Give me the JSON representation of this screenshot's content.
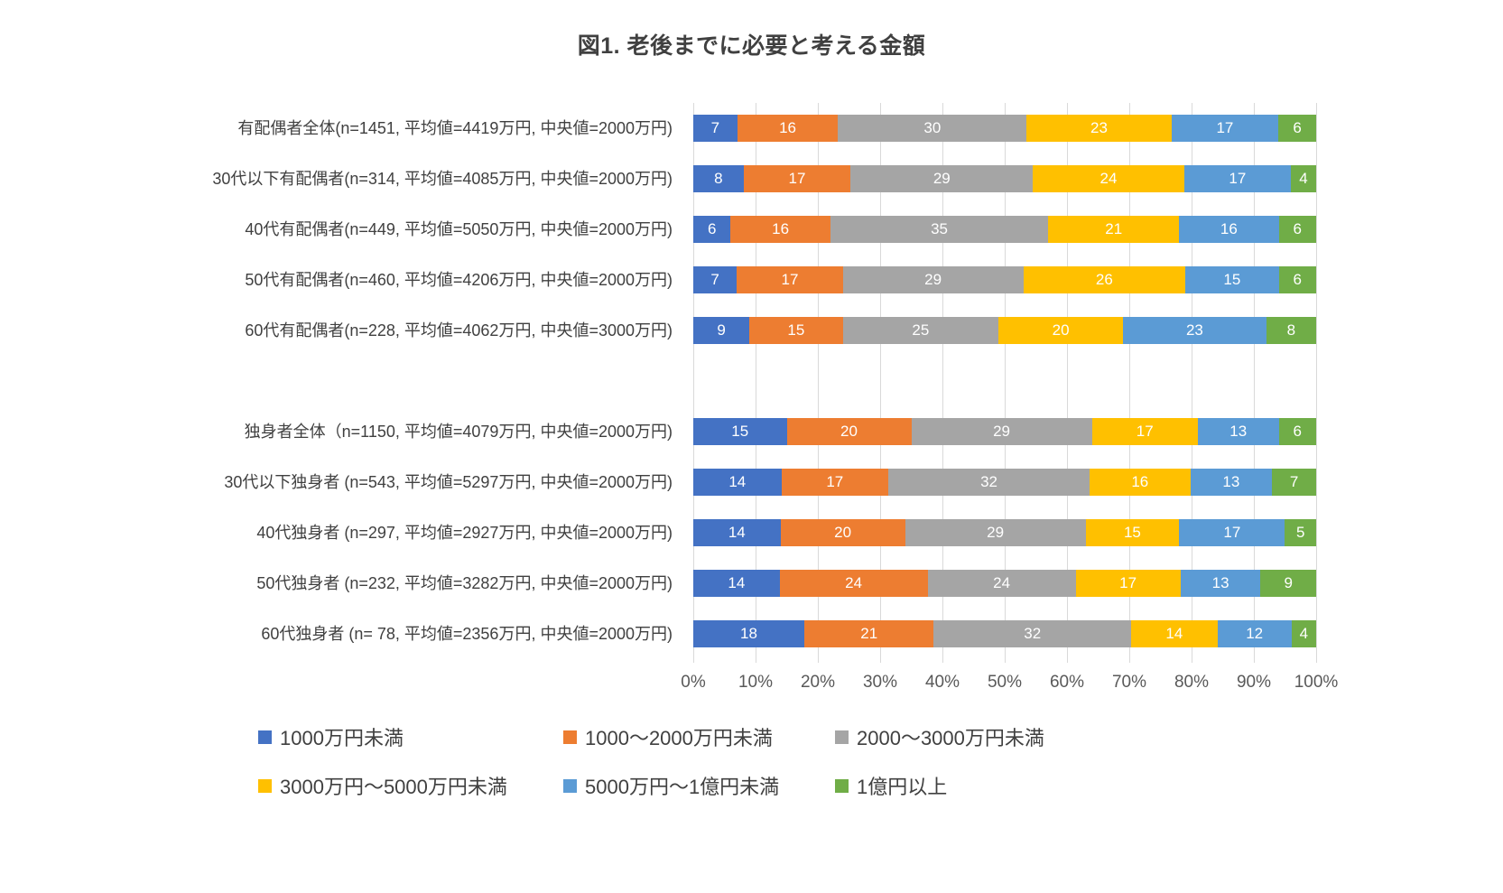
{
  "chart_data": {
    "type": "bar",
    "variant": "stacked-percent",
    "orientation": "horizontal",
    "title": "図1. 老後までに必要と考える金額",
    "xlim": [
      0,
      100
    ],
    "x_ticks": [
      "0%",
      "10%",
      "20%",
      "30%",
      "40%",
      "50%",
      "60%",
      "70%",
      "80%",
      "90%",
      "100%"
    ],
    "grid": true,
    "grid_color": "#d9d9d9",
    "value_label_color": "#ffffff",
    "legend_position": "bottom",
    "series": [
      {
        "name": "1000万円未満",
        "color": "#4472C4"
      },
      {
        "name": "1000～2000万円未満",
        "color": "#ED7D31"
      },
      {
        "name": "2000～3000万円未満",
        "color": "#A5A5A5"
      },
      {
        "name": "3000万円～5000万円未満",
        "color": "#FFC000"
      },
      {
        "name": "5000万円～1億円未満",
        "color": "#5B9BD5"
      },
      {
        "name": "1億円以上",
        "color": "#70AD47"
      }
    ],
    "groups": [
      {
        "rows": [
          {
            "label": "有配偶者全体(n=1451, 平均値=4419万円, 中央値=2000万円)",
            "values": [
              7,
              16,
              30,
              23,
              17,
              6
            ]
          },
          {
            "label": "30代以下有配偶者(n=314, 平均値=4085万円, 中央値=2000万円)",
            "values": [
              8,
              17,
              29,
              24,
              17,
              4
            ]
          },
          {
            "label": "40代有配偶者(n=449, 平均値=5050万円, 中央値=2000万円)",
            "values": [
              6,
              16,
              35,
              21,
              16,
              6
            ]
          },
          {
            "label": "50代有配偶者(n=460, 平均値=4206万円, 中央値=2000万円)",
            "values": [
              7,
              17,
              29,
              26,
              15,
              6
            ]
          },
          {
            "label": "60代有配偶者(n=228, 平均値=4062万円, 中央値=3000万円)",
            "values": [
              9,
              15,
              25,
              20,
              23,
              8
            ]
          }
        ]
      },
      {
        "rows": [
          {
            "label": "独身者全体（n=1150, 平均値=4079万円, 中央値=2000万円)",
            "values": [
              15,
              20,
              29,
              17,
              13,
              6
            ]
          },
          {
            "label": "30代以下独身者 (n=543, 平均値=5297万円, 中央値=2000万円)",
            "values": [
              14,
              17,
              32,
              16,
              13,
              7
            ]
          },
          {
            "label": "40代独身者 (n=297, 平均値=2927万円, 中央値=2000万円)",
            "values": [
              14,
              20,
              29,
              15,
              17,
              5
            ]
          },
          {
            "label": "50代独身者 (n=232, 平均値=3282万円, 中央値=2000万円)",
            "values": [
              14,
              24,
              24,
              17,
              13,
              9
            ]
          },
          {
            "label": "60代独身者 (n= 78, 平均値=2356万円, 中央値=2000万円)",
            "values": [
              18,
              21,
              32,
              14,
              12,
              4
            ]
          }
        ]
      }
    ]
  }
}
